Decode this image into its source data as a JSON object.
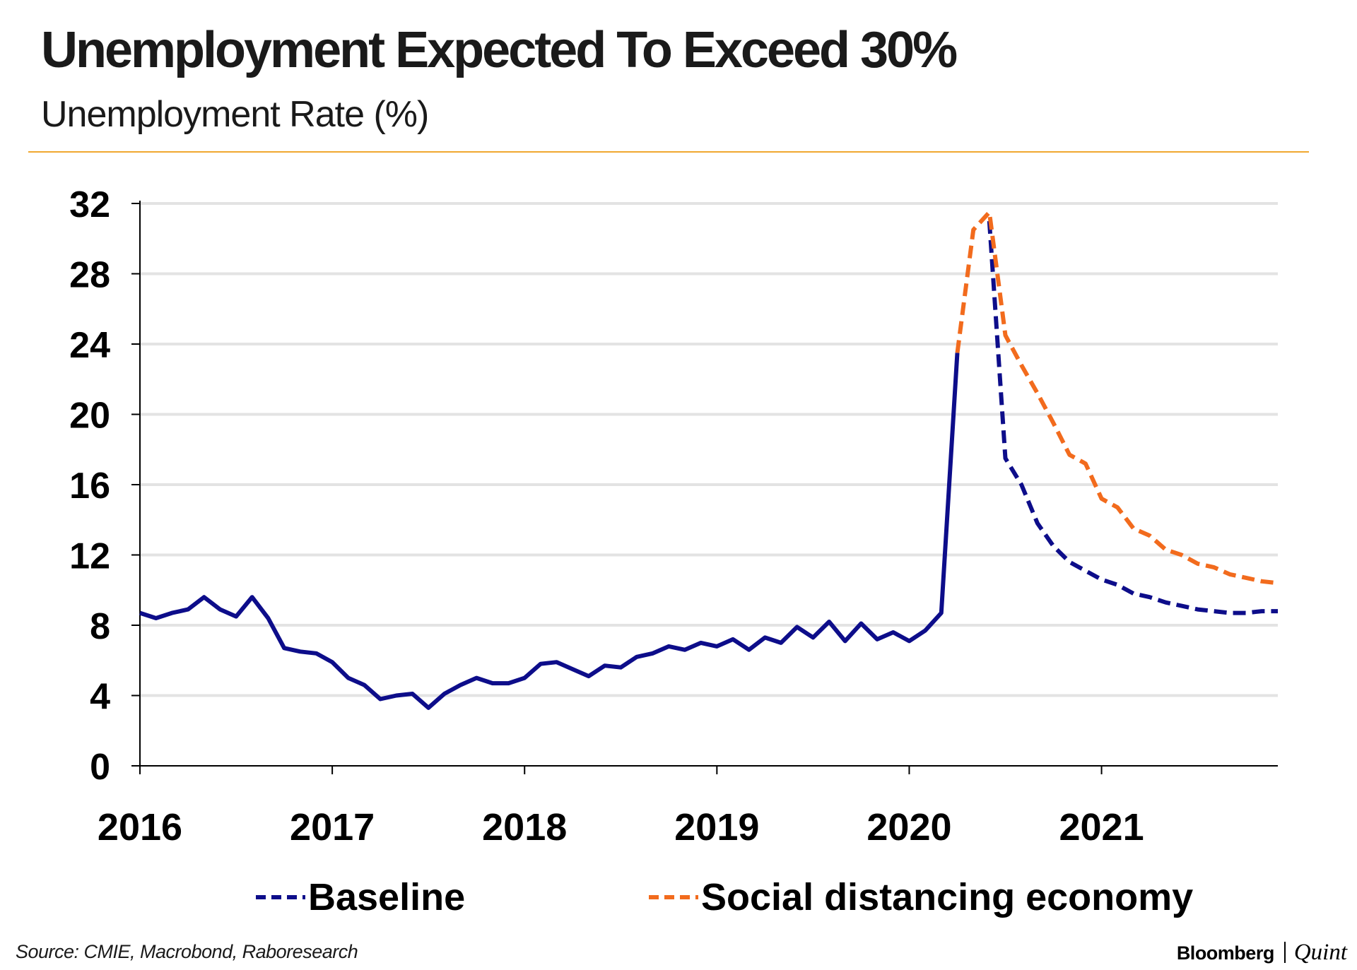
{
  "header": {
    "title": "Unemployment Expected To Exceed 30%",
    "subtitle": "Unemployment Rate (%)"
  },
  "footer": {
    "source": "Source: CMIE, Macrobond, Raboresearch",
    "brand_primary": "Bloomberg",
    "brand_secondary": "Quint"
  },
  "colors": {
    "rule": "#f0a830",
    "gridline": "#e3e3e3",
    "baseline": "#0d0d8a",
    "social": "#f26b1d"
  },
  "chart_data": {
    "type": "line",
    "title": "Unemployment Expected To Exceed 30%",
    "ylabel": "Unemployment Rate (%)",
    "ylim": [
      0,
      32
    ],
    "yticks": [
      "0",
      "4",
      "8",
      "12",
      "16",
      "20",
      "24",
      "28",
      "32"
    ],
    "xlim": [
      "2016-01",
      "2021-12"
    ],
    "xticks": [
      "2016",
      "2017",
      "2018",
      "2019",
      "2020",
      "2021"
    ],
    "grid": true,
    "legend_position": "bottom",
    "series": [
      {
        "name": "",
        "style": "solid",
        "color": "#0d0d8a",
        "points": [
          [
            "2016-01",
            8.7
          ],
          [
            "2016-02",
            8.4
          ],
          [
            "2016-03",
            8.7
          ],
          [
            "2016-04",
            8.9
          ],
          [
            "2016-05",
            9.6
          ],
          [
            "2016-06",
            8.9
          ],
          [
            "2016-07",
            8.5
          ],
          [
            "2016-08",
            9.6
          ],
          [
            "2016-09",
            8.4
          ],
          [
            "2016-10",
            6.7
          ],
          [
            "2016-11",
            6.5
          ],
          [
            "2016-12",
            6.4
          ],
          [
            "2017-01",
            5.9
          ],
          [
            "2017-02",
            5.0
          ],
          [
            "2017-03",
            4.6
          ],
          [
            "2017-04",
            3.8
          ],
          [
            "2017-05",
            4.0
          ],
          [
            "2017-06",
            4.1
          ],
          [
            "2017-07",
            3.3
          ],
          [
            "2017-08",
            4.1
          ],
          [
            "2017-09",
            4.6
          ],
          [
            "2017-10",
            5.0
          ],
          [
            "2017-11",
            4.7
          ],
          [
            "2017-12",
            4.7
          ],
          [
            "2018-01",
            5.0
          ],
          [
            "2018-02",
            5.8
          ],
          [
            "2018-03",
            5.9
          ],
          [
            "2018-04",
            5.5
          ],
          [
            "2018-05",
            5.1
          ],
          [
            "2018-06",
            5.7
          ],
          [
            "2018-07",
            5.6
          ],
          [
            "2018-08",
            6.2
          ],
          [
            "2018-09",
            6.4
          ],
          [
            "2018-10",
            6.8
          ],
          [
            "2018-11",
            6.6
          ],
          [
            "2018-12",
            7.0
          ],
          [
            "2019-01",
            6.8
          ],
          [
            "2019-02",
            7.2
          ],
          [
            "2019-03",
            6.6
          ],
          [
            "2019-04",
            7.3
          ],
          [
            "2019-05",
            7.0
          ],
          [
            "2019-06",
            7.9
          ],
          [
            "2019-07",
            7.3
          ],
          [
            "2019-08",
            8.2
          ],
          [
            "2019-09",
            7.1
          ],
          [
            "2019-10",
            8.1
          ],
          [
            "2019-11",
            7.2
          ],
          [
            "2019-12",
            7.6
          ],
          [
            "2020-01",
            7.1
          ],
          [
            "2020-02",
            7.7
          ],
          [
            "2020-03",
            8.7
          ],
          [
            "2020-04",
            23.5
          ]
        ]
      },
      {
        "name": "Baseline",
        "style": "dashed",
        "color": "#0d0d8a",
        "points": [
          [
            "2020-06",
            31.0
          ],
          [
            "2020-07",
            17.5
          ],
          [
            "2020-08",
            16.0
          ],
          [
            "2020-09",
            13.8
          ],
          [
            "2020-10",
            12.5
          ],
          [
            "2020-11",
            11.6
          ],
          [
            "2020-12",
            11.1
          ],
          [
            "2021-01",
            10.6
          ],
          [
            "2021-02",
            10.3
          ],
          [
            "2021-03",
            9.8
          ],
          [
            "2021-04",
            9.6
          ],
          [
            "2021-05",
            9.3
          ],
          [
            "2021-06",
            9.1
          ],
          [
            "2021-07",
            8.9
          ],
          [
            "2021-08",
            8.8
          ],
          [
            "2021-09",
            8.7
          ],
          [
            "2021-10",
            8.7
          ],
          [
            "2021-11",
            8.8
          ],
          [
            "2021-12",
            8.8
          ]
        ]
      },
      {
        "name": "Social distancing economy",
        "style": "dashed",
        "color": "#f26b1d",
        "points": [
          [
            "2020-04",
            23.5
          ],
          [
            "2020-05",
            30.5
          ],
          [
            "2020-06",
            31.5
          ],
          [
            "2020-07",
            24.5
          ],
          [
            "2020-08",
            22.8
          ],
          [
            "2020-09",
            21.2
          ],
          [
            "2020-10",
            19.5
          ],
          [
            "2020-11",
            17.7
          ],
          [
            "2020-12",
            17.2
          ],
          [
            "2021-01",
            15.2
          ],
          [
            "2021-02",
            14.7
          ],
          [
            "2021-03",
            13.5
          ],
          [
            "2021-04",
            13.1
          ],
          [
            "2021-05",
            12.3
          ],
          [
            "2021-06",
            12.0
          ],
          [
            "2021-07",
            11.5
          ],
          [
            "2021-08",
            11.3
          ],
          [
            "2021-09",
            10.9
          ],
          [
            "2021-10",
            10.7
          ],
          [
            "2021-11",
            10.5
          ],
          [
            "2021-12",
            10.4
          ]
        ]
      }
    ]
  }
}
